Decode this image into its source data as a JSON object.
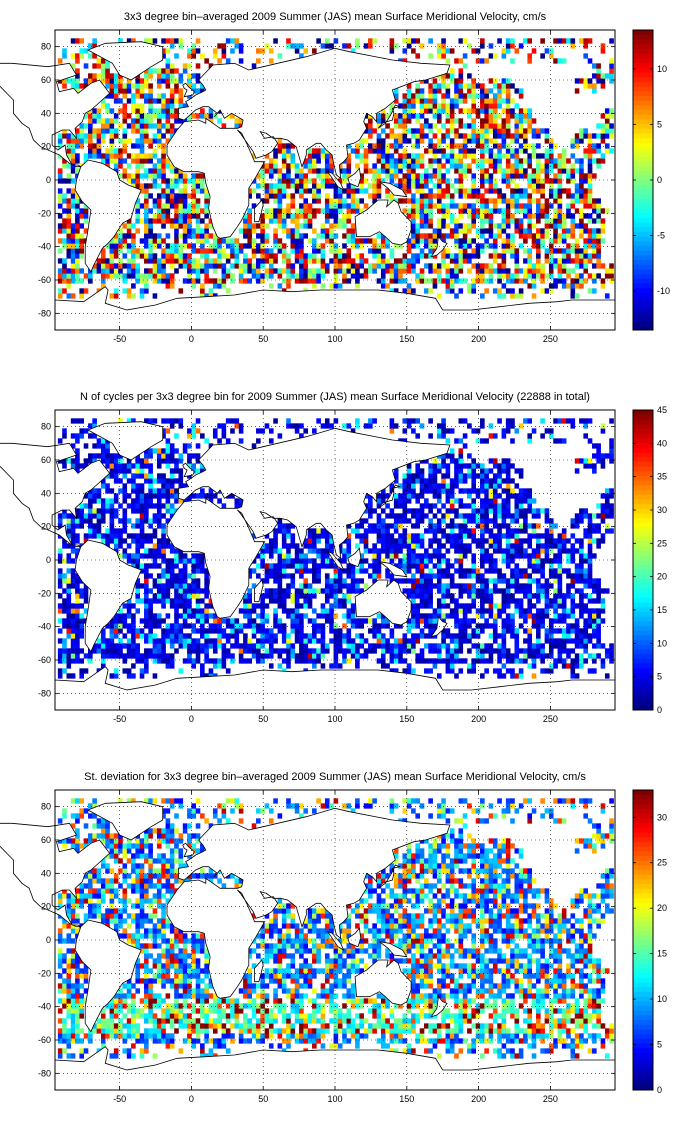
{
  "chart_data": [
    {
      "type": "heatmap",
      "title": "3x3 degree bin–averaged 2009 Summer (JAS) mean Surface Meridional Velocity, cm/s",
      "xlabel": "",
      "ylabel": "",
      "xlim": [
        -95,
        295
      ],
      "ylim": [
        -90,
        90
      ],
      "x_ticks": [
        -50,
        0,
        50,
        100,
        150,
        200,
        250
      ],
      "y_ticks": [
        -80,
        -60,
        -40,
        -20,
        0,
        20,
        40,
        60,
        80
      ],
      "grid": true,
      "bin_size_deg": 3,
      "colorbar": {
        "range": [
          -13.5,
          13.5
        ],
        "ticks": [
          -10,
          -5,
          0,
          5,
          10
        ],
        "colormap": "jet"
      },
      "field": "signed"
    },
    {
      "type": "heatmap",
      "title": "N of cycles per 3x3 degree bin for 2009 Summer (JAS) mean Surface Meridional Velocity (22888 in total)",
      "xlabel": "",
      "ylabel": "",
      "xlim": [
        -95,
        295
      ],
      "ylim": [
        -90,
        90
      ],
      "x_ticks": [
        -50,
        0,
        50,
        100,
        150,
        200,
        250
      ],
      "y_ticks": [
        -80,
        -60,
        -40,
        -20,
        0,
        20,
        40,
        60,
        80
      ],
      "grid": true,
      "bin_size_deg": 3,
      "colorbar": {
        "range": [
          0,
          45
        ],
        "ticks": [
          0,
          5,
          10,
          15,
          20,
          25,
          30,
          35,
          40,
          45
        ],
        "colormap": "jet"
      },
      "field": "count"
    },
    {
      "type": "heatmap",
      "title": "St. deviation for 3x3 degree bin–averaged 2009 Summer (JAS) mean Surface Meridional Velocity, cm/s",
      "xlabel": "",
      "ylabel": "",
      "xlim": [
        -95,
        295
      ],
      "ylim": [
        -90,
        90
      ],
      "x_ticks": [
        -50,
        0,
        50,
        100,
        150,
        200,
        250
      ],
      "y_ticks": [
        -80,
        -60,
        -40,
        -20,
        0,
        20,
        40,
        60,
        80
      ],
      "grid": true,
      "bin_size_deg": 3,
      "colorbar": {
        "range": [
          0,
          33
        ],
        "ticks": [
          0,
          5,
          10,
          15,
          20,
          25,
          30
        ],
        "colormap": "jet"
      },
      "field": "std"
    }
  ],
  "land_color": "#ffffff",
  "coast_color": "#000000",
  "grid_color": "#000000"
}
